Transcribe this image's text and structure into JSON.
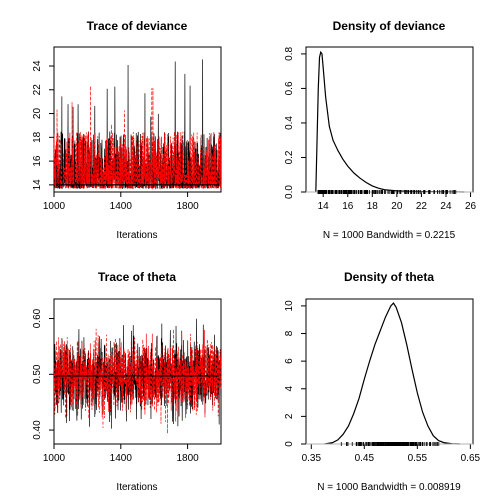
{
  "chart_data": [
    {
      "type": "line",
      "title": "Trace of deviance",
      "xlabel": "Iterations",
      "ylabel": "",
      "xlim": [
        1000,
        2000
      ],
      "ylim": [
        13.4,
        25.6
      ],
      "xticks": [
        1000,
        1400,
        1800
      ],
      "yticks": [
        14,
        16,
        18,
        20,
        22,
        24
      ],
      "series": [
        {
          "color": "#000000",
          "style": "solid",
          "n": 1000,
          "baseline": 14.0,
          "typical_range": [
            13.6,
            18.5
          ],
          "max": 25.2
        },
        {
          "color": "#ff0000",
          "style": "dashed",
          "n": 1000,
          "baseline": 14.0,
          "typical_range": [
            13.6,
            18.5
          ],
          "max": 23.5
        }
      ],
      "reference_line": 14.0
    },
    {
      "type": "line",
      "title": "Density of deviance",
      "xlabel": "N = 1000   Bandwidth = 0.2215",
      "ylabel": "",
      "xlim": [
        12.6,
        26.2
      ],
      "ylim": [
        0,
        0.84
      ],
      "xticks": [
        14,
        16,
        18,
        20,
        22,
        24,
        26
      ],
      "yticks": [
        0.0,
        0.2,
        0.4,
        0.6,
        0.8
      ],
      "series": [
        {
          "color": "#000000",
          "x": [
            13.4,
            13.5,
            13.6,
            13.7,
            13.8,
            13.9,
            14.0,
            14.2,
            14.5,
            14.8,
            15.2,
            15.6,
            16.0,
            16.5,
            17.0,
            17.5,
            18.0,
            18.5,
            19.0,
            20.0,
            21.0,
            22.0,
            23.0,
            24.0,
            25.5
          ],
          "y": [
            0.0,
            0.3,
            0.6,
            0.78,
            0.81,
            0.8,
            0.72,
            0.55,
            0.38,
            0.3,
            0.24,
            0.19,
            0.15,
            0.11,
            0.08,
            0.055,
            0.035,
            0.022,
            0.013,
            0.007,
            0.004,
            0.002,
            0.0015,
            0.001,
            0.0
          ]
        }
      ],
      "rug_range": [
        13.6,
        25.2
      ]
    },
    {
      "type": "line",
      "title": "Trace of theta",
      "xlabel": "Iterations",
      "ylabel": "",
      "xlim": [
        1000,
        2000
      ],
      "ylim": [
        0.375,
        0.635
      ],
      "xticks": [
        1000,
        1400,
        1800
      ],
      "yticks": [
        0.4,
        0.5,
        0.6
      ],
      "series": [
        {
          "color": "#000000",
          "style": "solid",
          "n": 1000,
          "mean": 0.497,
          "typical_range": [
            0.41,
            0.59
          ],
          "max": 0.625,
          "min": 0.385
        },
        {
          "color": "#ff0000",
          "style": "dashed",
          "n": 1000,
          "mean": 0.497,
          "typical_range": [
            0.41,
            0.59
          ],
          "max": 0.615,
          "min": 0.39
        }
      ],
      "reference_line": 0.497
    },
    {
      "type": "line",
      "title": "Density of theta",
      "xlabel": "N = 1000   Bandwidth = 0.008919",
      "ylabel": "",
      "xlim": [
        0.34,
        0.655
      ],
      "ylim": [
        0,
        10.5
      ],
      "xticks": [
        0.35,
        0.45,
        0.55,
        0.65
      ],
      "yticks": [
        0,
        2,
        4,
        6,
        8,
        10
      ],
      "series": [
        {
          "color": "#000000",
          "x": [
            0.375,
            0.39,
            0.4,
            0.41,
            0.42,
            0.43,
            0.44,
            0.45,
            0.46,
            0.47,
            0.48,
            0.49,
            0.5,
            0.505,
            0.51,
            0.52,
            0.53,
            0.54,
            0.55,
            0.56,
            0.57,
            0.58,
            0.59,
            0.6,
            0.615,
            0.63
          ],
          "y": [
            0.0,
            0.1,
            0.3,
            0.7,
            1.3,
            2.2,
            3.3,
            4.7,
            6.0,
            7.2,
            8.2,
            9.2,
            10.0,
            10.2,
            9.9,
            8.8,
            7.2,
            5.4,
            3.7,
            2.3,
            1.3,
            0.6,
            0.25,
            0.1,
            0.02,
            0.0
          ]
        }
      ],
      "rug_range": [
        0.385,
        0.62
      ]
    }
  ]
}
